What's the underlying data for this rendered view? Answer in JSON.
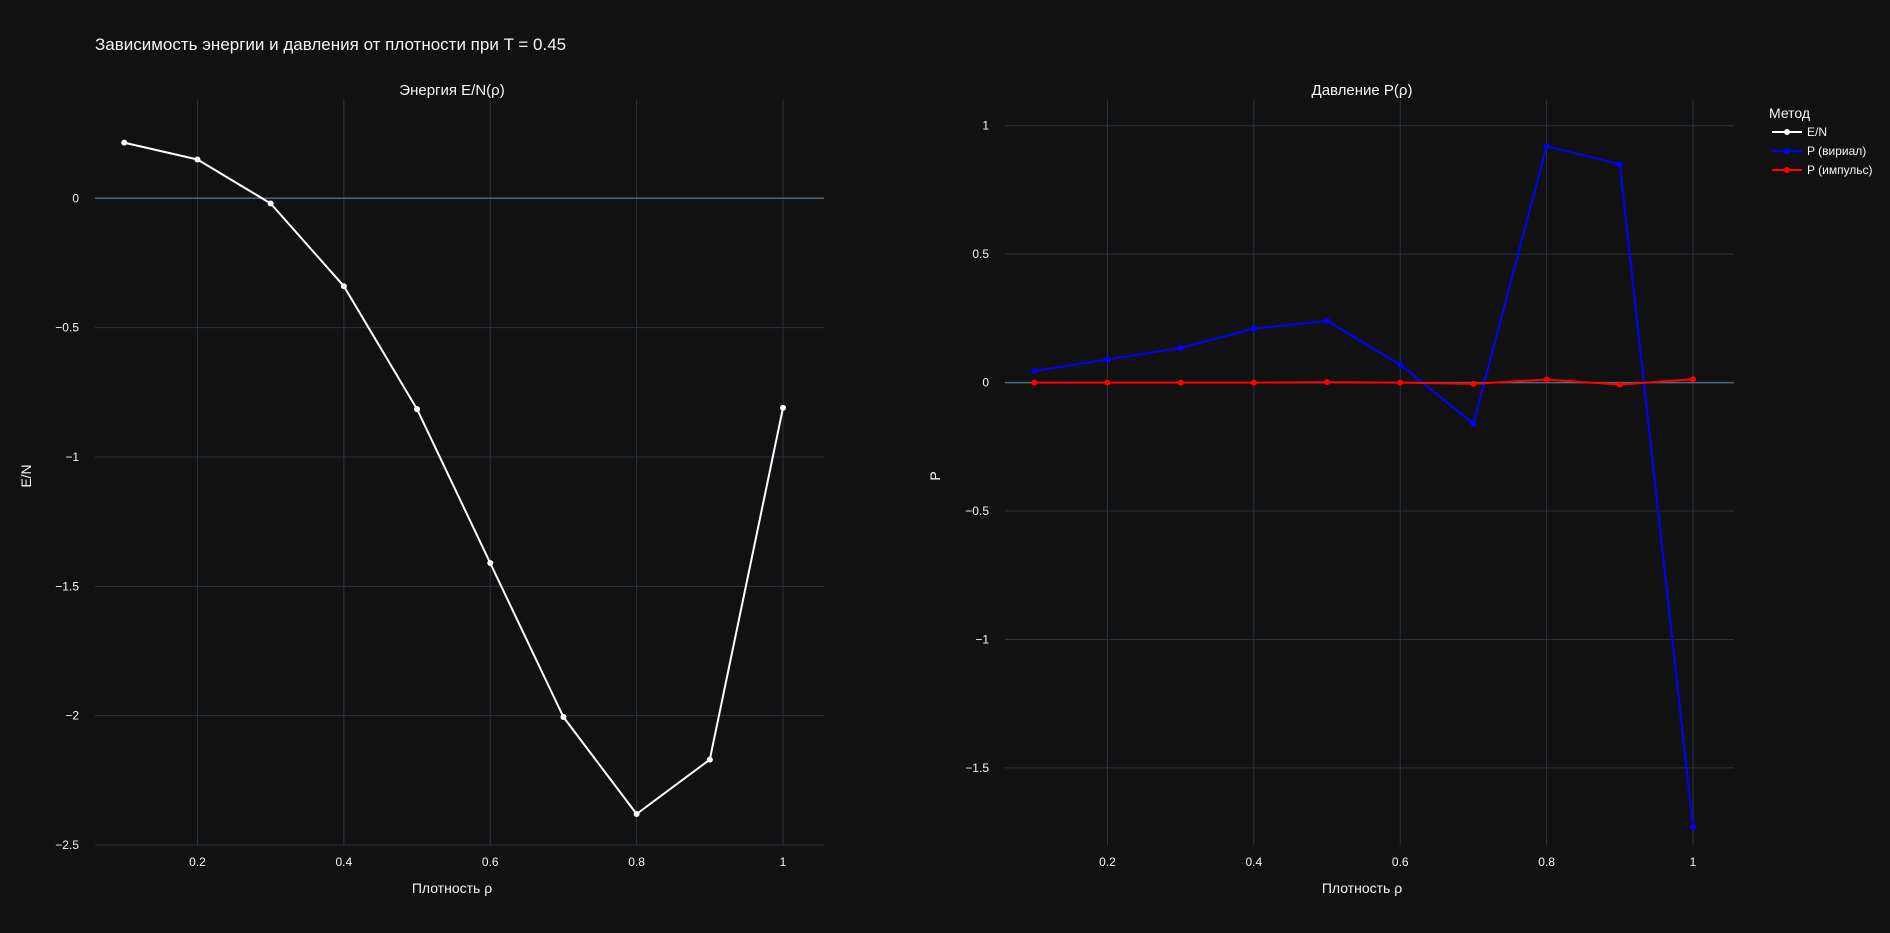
{
  "figure_title": "Зависимость энергии и давления от плотности при T = 0.45",
  "colors": {
    "background": "#111111",
    "grid": "#283442",
    "zeroline": "#506784",
    "text": "#f2f5fa"
  },
  "legend": {
    "title": "Метод",
    "placement": "top-right",
    "items": [
      {
        "label": "E/N",
        "color": "#ffffff"
      },
      {
        "label": "P (вириал)",
        "color": "#0000ff"
      },
      {
        "label": "P (импульс)",
        "color": "#ff0000"
      }
    ]
  },
  "chart_data": [
    {
      "type": "line",
      "title": "Энергия E/N(ρ)",
      "xlabel": "Плотность ρ",
      "ylabel": "E/N",
      "xlim": [
        0.06,
        1.056
      ],
      "ylim": [
        -2.5,
        0.38
      ],
      "xticks": [
        0.2,
        0.4,
        0.6,
        0.8,
        1
      ],
      "xtick_labels": [
        "0.2",
        "0.4",
        "0.6",
        "0.8",
        "1"
      ],
      "yticks": [
        0,
        -0.5,
        -1,
        -1.5,
        -2,
        -2.5
      ],
      "ytick_labels": [
        "0",
        "−0.5",
        "−1",
        "−1.5",
        "−2",
        "−2.5"
      ],
      "grid": true,
      "x": [
        0.1,
        0.2,
        0.3,
        0.4,
        0.5,
        0.6,
        0.7,
        0.8,
        0.9,
        1.0
      ],
      "series": [
        {
          "name": "E/N",
          "color": "#ffffff",
          "values": [
            0.215,
            0.15,
            -0.02,
            -0.34,
            -0.815,
            -1.41,
            -2.005,
            -2.38,
            -2.17,
            -0.81
          ]
        }
      ]
    },
    {
      "type": "line",
      "title": "Давление P(ρ)",
      "xlabel": "Плотность ρ",
      "ylabel": "P",
      "xlim": [
        0.06,
        1.056
      ],
      "ylim": [
        -1.8,
        1.1
      ],
      "xticks": [
        0.2,
        0.4,
        0.6,
        0.8,
        1
      ],
      "xtick_labels": [
        "0.2",
        "0.4",
        "0.6",
        "0.8",
        "1"
      ],
      "yticks": [
        1,
        0.5,
        0,
        -0.5,
        -1,
        -1.5
      ],
      "ytick_labels": [
        "1",
        "0.5",
        "0",
        "−0.5",
        "−1",
        "−1.5"
      ],
      "grid": true,
      "x": [
        0.1,
        0.2,
        0.3,
        0.4,
        0.5,
        0.6,
        0.7,
        0.8,
        0.9,
        1.0
      ],
      "series": [
        {
          "name": "P (вириал)",
          "color": "#0000ff",
          "values": [
            0.045,
            0.09,
            0.135,
            0.21,
            0.24,
            0.07,
            -0.16,
            0.92,
            0.85,
            -1.73
          ]
        },
        {
          "name": "P (импульс)",
          "color": "#ff0000",
          "values": [
            0.0,
            0.0,
            0.0,
            0.0,
            0.002,
            0.0,
            -0.005,
            0.012,
            -0.008,
            0.013
          ]
        }
      ]
    }
  ]
}
